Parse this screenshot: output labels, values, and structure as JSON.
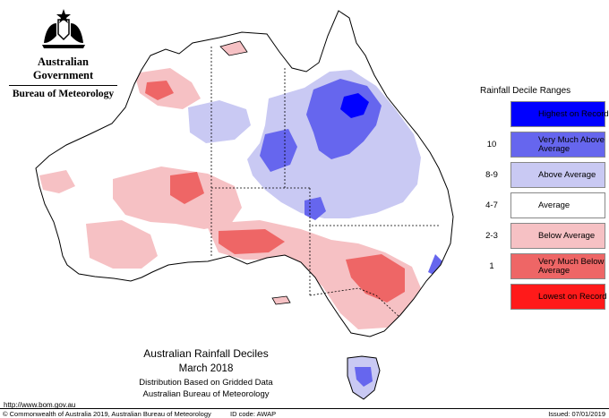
{
  "header": {
    "government": "Australian Government",
    "bureau": "Bureau of Meteorology"
  },
  "legend": {
    "title": "Rainfall Decile Ranges",
    "entries": [
      {
        "range": "",
        "label": "Highest on Record",
        "color": "#0000ff"
      },
      {
        "range": "10",
        "label": "Very Much Above Average",
        "color": "#6666ee"
      },
      {
        "range": "8-9",
        "label": "Above Average",
        "color": "#c9c9f3"
      },
      {
        "range": "4-7",
        "label": "Average",
        "color": "#ffffff"
      },
      {
        "range": "2-3",
        "label": "Below Average",
        "color": "#f6c1c4"
      },
      {
        "range": "1",
        "label": "Very Much Below Average",
        "color": "#ee6666"
      },
      {
        "range": "",
        "label": "Lowest on Record",
        "color": "#ff1a1a"
      }
    ]
  },
  "map": {
    "title": "Australian Rainfall Deciles",
    "period": "March 2018",
    "subtitle_1": "Distribution Based on Gridded Data",
    "subtitle_2": "Australian Bureau of Meteorology"
  },
  "footer": {
    "url": "http://www.bom.gov.au",
    "copyright": "© Commonwealth of Australia 2019, Australian Bureau of Meteorology",
    "id_code": "ID code: AWAP",
    "issued": "Issued: 07/01/2019"
  }
}
